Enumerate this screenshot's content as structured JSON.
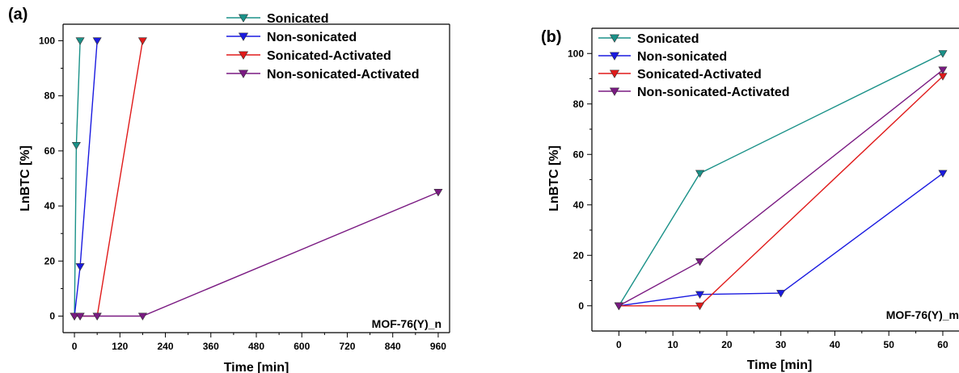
{
  "chart_data": [
    {
      "type": "line",
      "panel_label": "(a)",
      "xlabel": "Time [min]",
      "ylabel": "LnBTC [%]",
      "xlim": [
        -30,
        990
      ],
      "ylim": [
        -6,
        106
      ],
      "xticks": [
        0,
        120,
        240,
        360,
        480,
        600,
        720,
        840,
        960
      ],
      "xtick_labels": [
        "0",
        "120",
        "240",
        "360",
        "480",
        "600",
        "720",
        "840",
        "960"
      ],
      "yticks": [
        0,
        20,
        40,
        60,
        80,
        100
      ],
      "ytick_labels": [
        "0",
        "20",
        "40",
        "60",
        "80",
        "100"
      ],
      "annotation": "MOF-76(Y)_n",
      "legend_position": "top-right",
      "series": [
        {
          "name": "Sonicated",
          "color": "#1a9188",
          "x": [
            0,
            5,
            15
          ],
          "y": [
            0,
            62,
            100
          ]
        },
        {
          "name": "Non-sonicated",
          "color": "#1a1ae0",
          "x": [
            0,
            15,
            60
          ],
          "y": [
            0,
            18,
            100
          ]
        },
        {
          "name": "Sonicated-Activated",
          "color": "#e01a1a",
          "x": [
            0,
            15,
            60,
            180
          ],
          "y": [
            0,
            0,
            0,
            100
          ]
        },
        {
          "name": "Non-sonicated-Activated",
          "color": "#7a1a82",
          "x": [
            0,
            15,
            60,
            180,
            960
          ],
          "y": [
            0,
            0,
            0,
            0,
            45
          ]
        }
      ]
    },
    {
      "type": "line",
      "panel_label": "(b)",
      "xlabel": "Time [min]",
      "ylabel": "LnBTC [%]",
      "xlim": [
        -5,
        63
      ],
      "ylim": [
        -10,
        110
      ],
      "xticks": [
        0,
        10,
        20,
        30,
        40,
        50,
        60
      ],
      "xtick_labels": [
        "0",
        "10",
        "20",
        "30",
        "40",
        "50",
        "60"
      ],
      "yticks": [
        0,
        20,
        40,
        60,
        80,
        100
      ],
      "ytick_labels": [
        "0",
        "20",
        "40",
        "60",
        "80",
        "100"
      ],
      "annotation": "MOF-76(Y)_m",
      "legend_position": "top-left",
      "series": [
        {
          "name": "Sonicated",
          "color": "#1a9188",
          "x": [
            0,
            15,
            60
          ],
          "y": [
            0,
            52.5,
            100
          ]
        },
        {
          "name": "Non-sonicated",
          "color": "#1a1ae0",
          "x": [
            0,
            15,
            30,
            60
          ],
          "y": [
            0,
            4.5,
            5,
            52.5
          ]
        },
        {
          "name": "Sonicated-Activated",
          "color": "#e01a1a",
          "x": [
            0,
            15,
            60
          ],
          "y": [
            0,
            0,
            91
          ]
        },
        {
          "name": "Non-sonicated-Activated",
          "color": "#7a1a82",
          "x": [
            0,
            15,
            60
          ],
          "y": [
            0,
            17.5,
            93.5
          ]
        }
      ]
    }
  ]
}
